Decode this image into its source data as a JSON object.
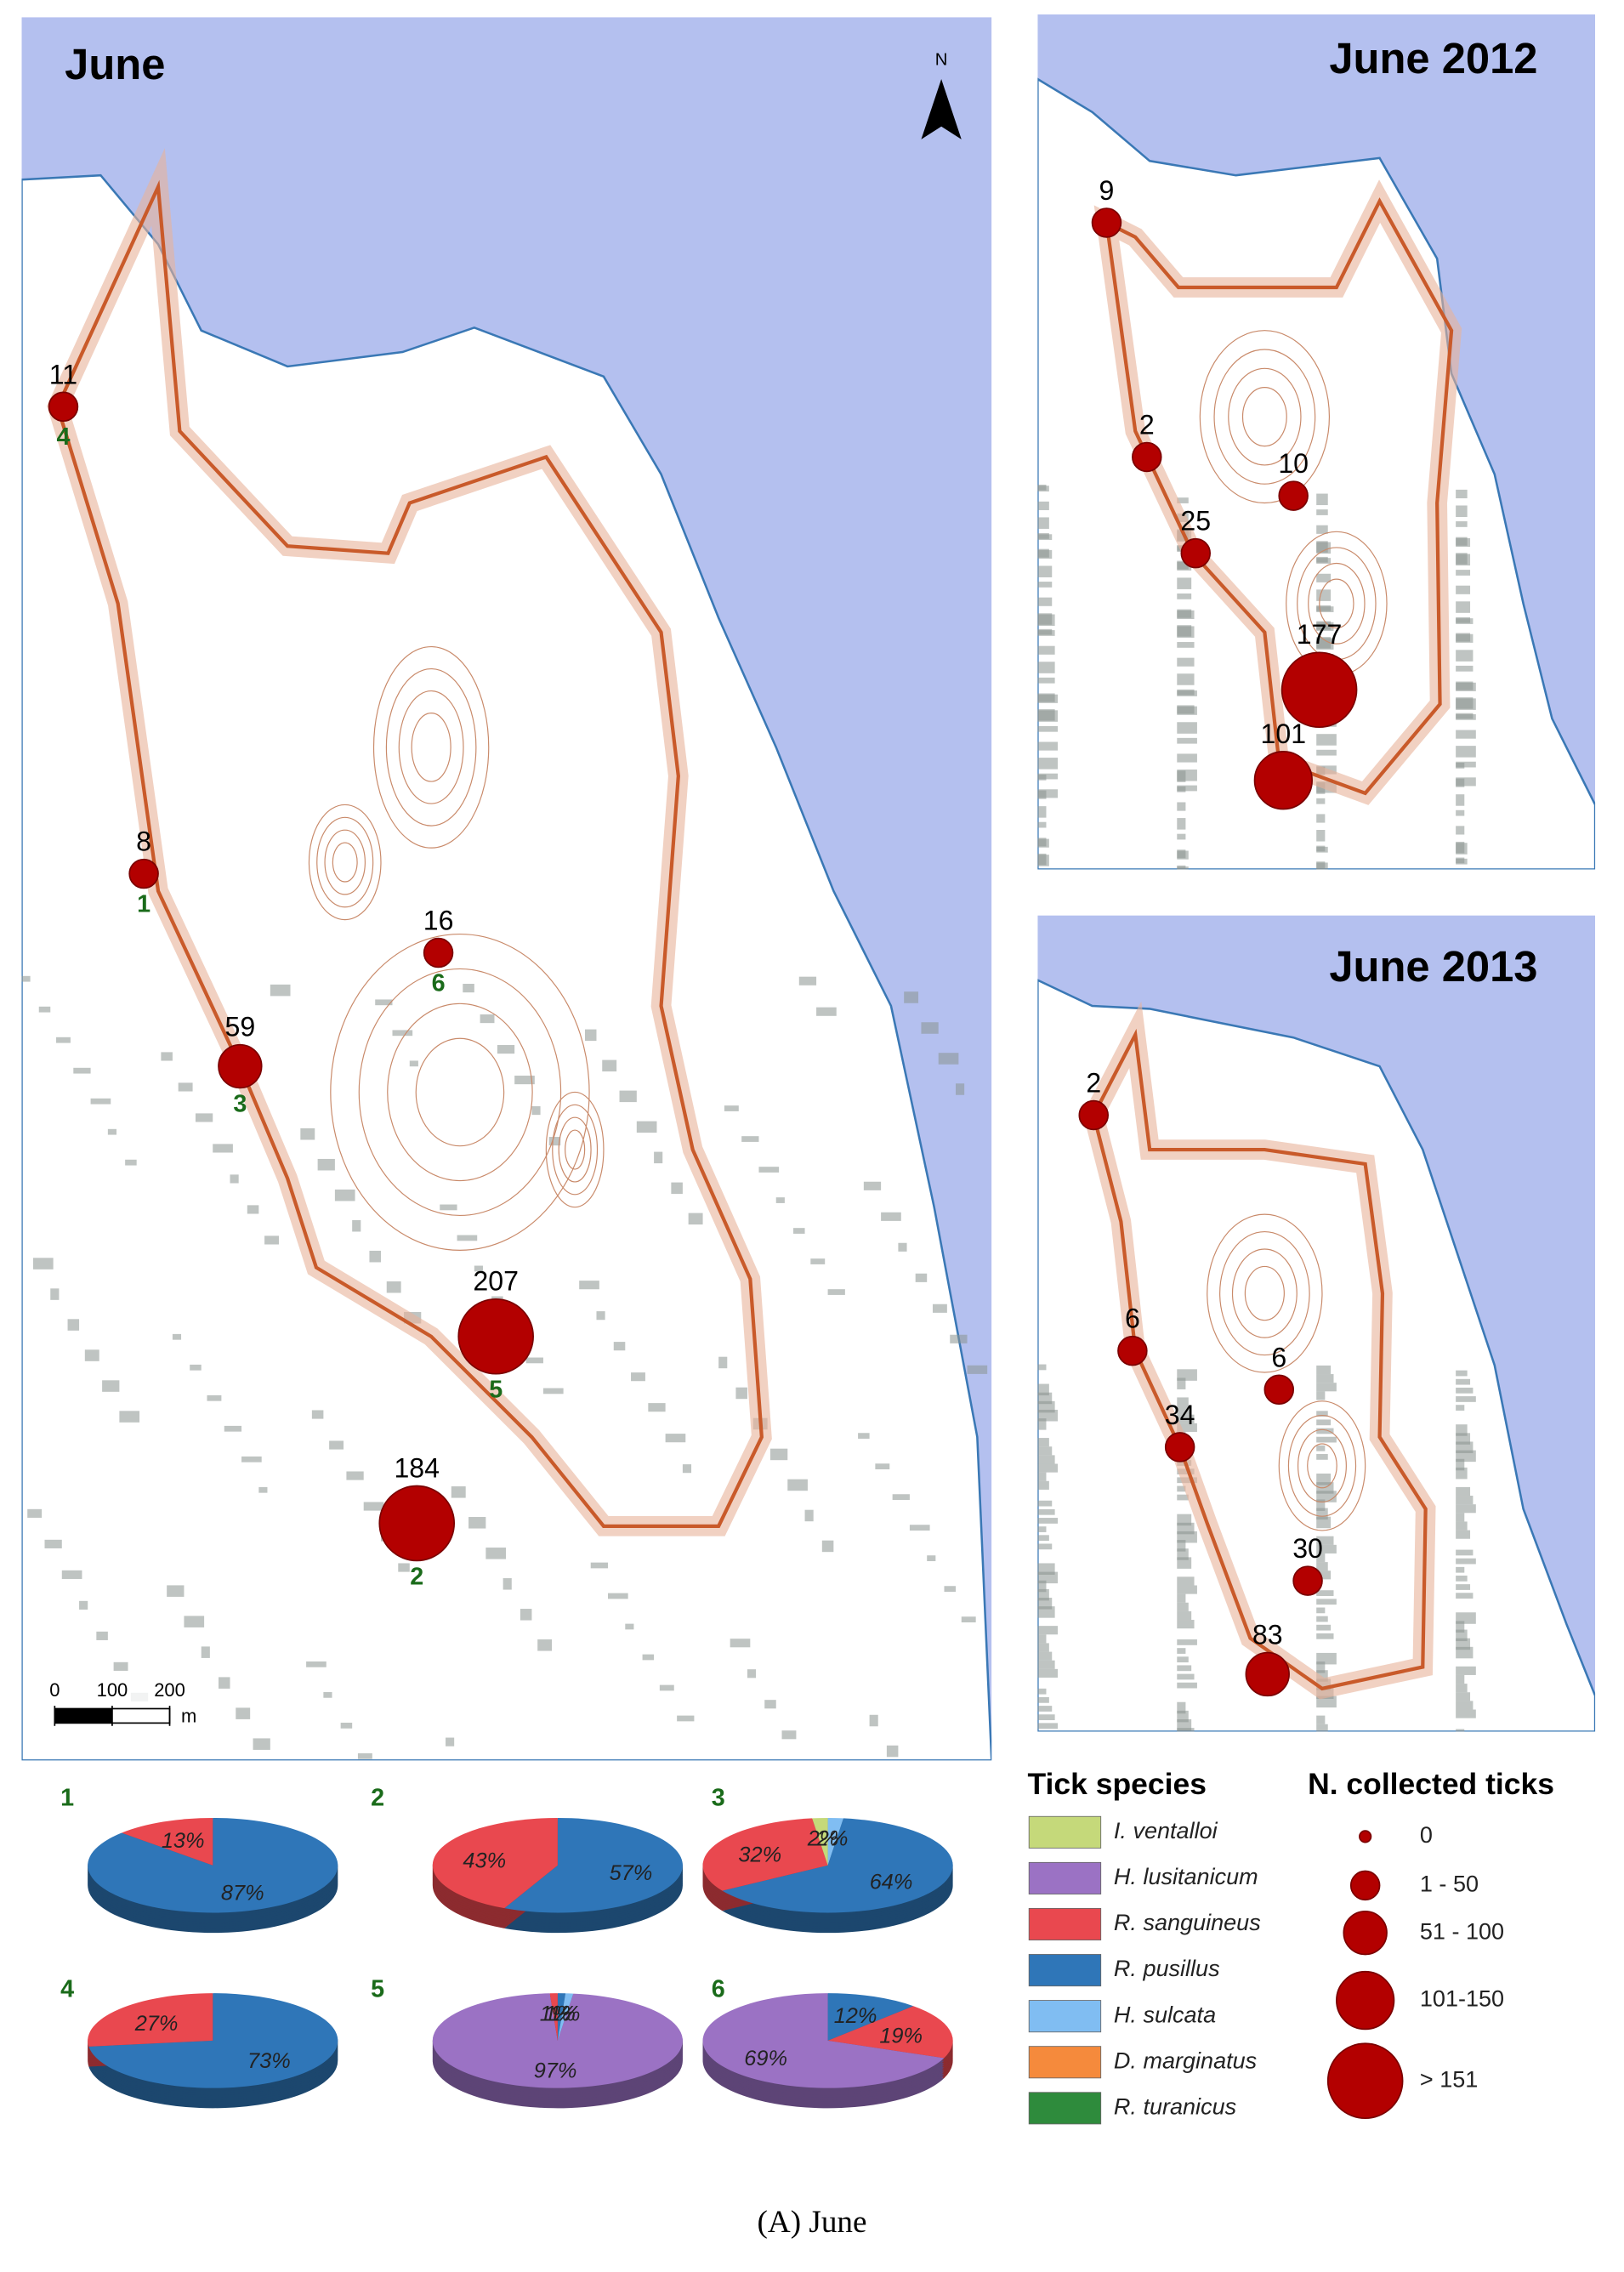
{
  "maps": [
    {
      "title": "June",
      "north": "N",
      "scale": {
        "ticks": [
          0,
          100,
          200
        ],
        "unit": "m"
      },
      "points": [
        {
          "count": 11,
          "site": "4"
        },
        {
          "count": 8,
          "site": "1"
        },
        {
          "count": 16,
          "site": "6"
        },
        {
          "count": 59,
          "site": "3"
        },
        {
          "count": 207,
          "site": "5"
        },
        {
          "count": 184,
          "site": "2"
        }
      ]
    },
    {
      "title": "June 2012",
      "points": [
        {
          "count": 9
        },
        {
          "count": 2
        },
        {
          "count": 10
        },
        {
          "count": 25
        },
        {
          "count": 177
        },
        {
          "count": 101
        }
      ]
    },
    {
      "title": "June 2013",
      "points": [
        {
          "count": 2
        },
        {
          "count": 6
        },
        {
          "count": 6
        },
        {
          "count": 34
        },
        {
          "count": 30
        },
        {
          "count": 83
        }
      ]
    }
  ],
  "pies": [
    {
      "label": "1",
      "values": [
        87,
        13
      ],
      "value_labels": [
        "87%",
        "13%"
      ],
      "colors": [
        "#2f76b8",
        "#e9484f"
      ]
    },
    {
      "label": "2",
      "values": [
        57,
        43
      ],
      "value_labels": [
        "57%",
        "43%"
      ],
      "colors": [
        "#2f76b8",
        "#e9484f"
      ]
    },
    {
      "label": "3",
      "values": [
        2,
        64,
        32,
        2
      ],
      "value_labels": [
        "2%",
        "64%",
        "32%",
        "2%"
      ],
      "colors": [
        "#80bdf2",
        "#2f76b8",
        "#e9484f",
        "#c5d97a"
      ]
    },
    {
      "label": "4",
      "values": [
        73,
        27
      ],
      "value_labels": [
        "73%",
        "27%"
      ],
      "colors": [
        "#2f76b8",
        "#e9484f"
      ]
    },
    {
      "label": "5",
      "values": [
        1,
        1,
        97,
        1
      ],
      "value_labels": [
        "1%",
        "1%",
        "97%",
        "1%"
      ],
      "colors": [
        "#2f76b8",
        "#80bdf2",
        "#9b72c4",
        "#e9484f"
      ]
    },
    {
      "label": "6",
      "values": [
        12,
        19,
        69
      ],
      "value_labels": [
        "12%",
        "19%",
        "69%"
      ],
      "colors": [
        "#2f76b8",
        "#e9484f",
        "#9b72c4"
      ]
    }
  ],
  "legend": {
    "species_title": "Tick species",
    "species": [
      {
        "name": "I. ventalloi",
        "color": "#c5d97a"
      },
      {
        "name": "H. lusitanicum",
        "color": "#9b72c4"
      },
      {
        "name": "R. sanguineus",
        "color": "#e9484f"
      },
      {
        "name": "R. pusillus",
        "color": "#2f76b8"
      },
      {
        "name": "H. sulcata",
        "color": "#80bdf2"
      },
      {
        "name": "D. marginatus",
        "color": "#f58a3c"
      },
      {
        "name": "R. turanicus",
        "color": "#2e8b3c"
      }
    ],
    "size_title": "N. collected ticks",
    "sizes": [
      {
        "label": "0",
        "min": 0,
        "max": 0
      },
      {
        "label": "1 - 50",
        "min": 1,
        "max": 50
      },
      {
        "label": "51 - 100",
        "min": 51,
        "max": 100
      },
      {
        "label": "101-150",
        "min": 101,
        "max": 150
      },
      {
        "label": "> 151",
        "min": 151
      }
    ]
  },
  "caption": "(A) June"
}
